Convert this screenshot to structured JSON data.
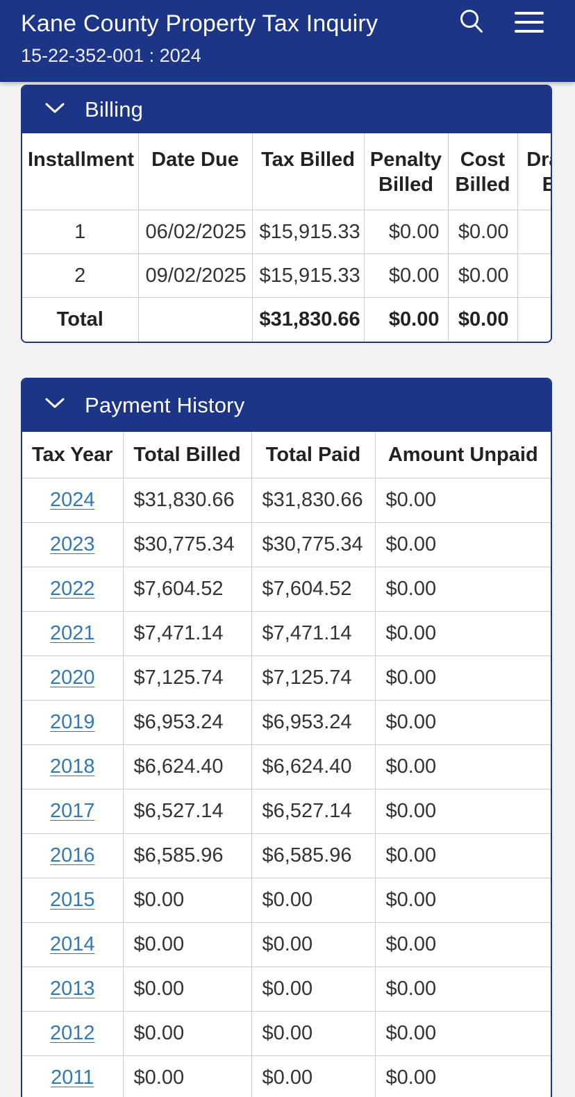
{
  "app_header": {
    "title": "Kane County Property Tax Inquiry",
    "subtitle": "15-22-352-001 : 2024"
  },
  "billing": {
    "title": "Billing",
    "columns": [
      "Installment",
      "Date Due",
      "Tax Billed",
      "Penalty Billed",
      "Cost Billed",
      "Drainage Billed"
    ],
    "rows": [
      [
        "1",
        "06/02/2025",
        "$15,915.33",
        "$0.00",
        "$0.00",
        ""
      ],
      [
        "2",
        "09/02/2025",
        "$15,915.33",
        "$0.00",
        "$0.00",
        ""
      ]
    ],
    "total_row": [
      "Total",
      "",
      "$31,830.66",
      "$0.00",
      "$0.00",
      ""
    ]
  },
  "payment_history": {
    "title": "Payment History",
    "columns": [
      "Tax Year",
      "Total Billed",
      "Total Paid",
      "Amount Unpaid"
    ],
    "rows": [
      [
        "2024",
        "$31,830.66",
        "$31,830.66",
        "$0.00"
      ],
      [
        "2023",
        "$30,775.34",
        "$30,775.34",
        "$0.00"
      ],
      [
        "2022",
        "$7,604.52",
        "$7,604.52",
        "$0.00"
      ],
      [
        "2021",
        "$7,471.14",
        "$7,471.14",
        "$0.00"
      ],
      [
        "2020",
        "$7,125.74",
        "$7,125.74",
        "$0.00"
      ],
      [
        "2019",
        "$6,953.24",
        "$6,953.24",
        "$0.00"
      ],
      [
        "2018",
        "$6,624.40",
        "$6,624.40",
        "$0.00"
      ],
      [
        "2017",
        "$6,527.14",
        "$6,527.14",
        "$0.00"
      ],
      [
        "2016",
        "$6,585.96",
        "$6,585.96",
        "$0.00"
      ],
      [
        "2015",
        "$0.00",
        "$0.00",
        "$0.00"
      ],
      [
        "2014",
        "$0.00",
        "$0.00",
        "$0.00"
      ],
      [
        "2013",
        "$0.00",
        "$0.00",
        "$0.00"
      ],
      [
        "2012",
        "$0.00",
        "$0.00",
        "$0.00"
      ],
      [
        "2011",
        "$0.00",
        "$0.00",
        "$0.00"
      ]
    ]
  },
  "icons": {
    "search": "search-icon",
    "menu": "menu-icon",
    "section_chevron": "chevron-down-icon"
  },
  "colors": {
    "navy": "#1c3586",
    "link_blue": "#3377b5",
    "page_bg": "#f2f2f3",
    "border_gray": "#cccccc",
    "text": "#333333"
  }
}
